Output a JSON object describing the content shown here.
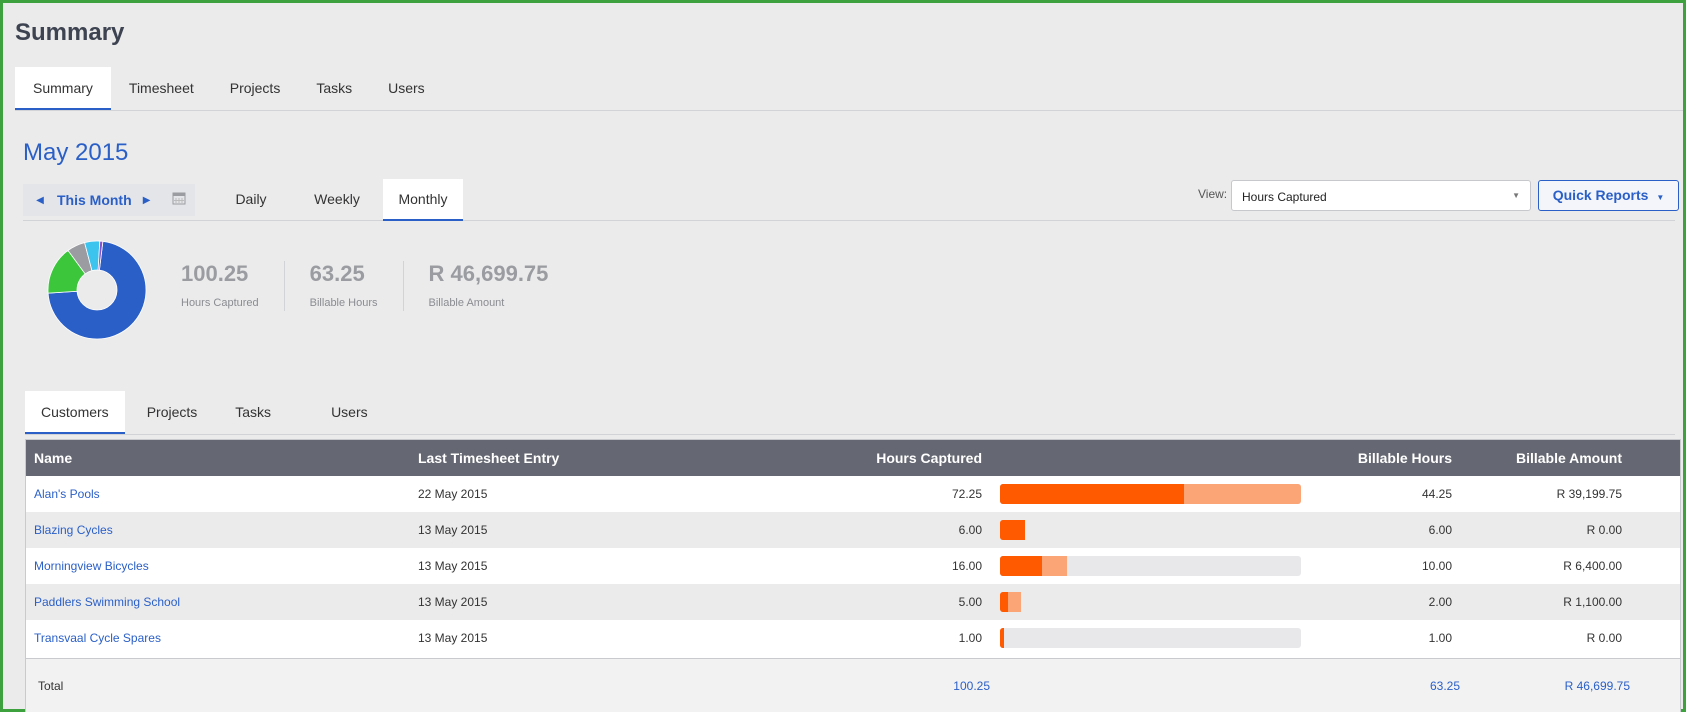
{
  "page": {
    "title": "Summary"
  },
  "top_tabs": [
    {
      "label": "Summary",
      "active": true
    },
    {
      "label": "Timesheet"
    },
    {
      "label": "Projects"
    },
    {
      "label": "Tasks"
    },
    {
      "label": "Users"
    }
  ],
  "period": {
    "title": "May 2015",
    "nav_label": "This Month",
    "tabs": [
      {
        "label": "Daily"
      },
      {
        "label": "Weekly"
      },
      {
        "label": "Monthly",
        "active": true
      }
    ]
  },
  "view": {
    "label": "View:",
    "selected": "Hours Captured"
  },
  "quick_reports": {
    "label": "Quick Reports"
  },
  "stats": [
    {
      "value": "100.25",
      "label": "Hours Captured"
    },
    {
      "value": "63.25",
      "label": "Billable Hours"
    },
    {
      "value": "R 46,699.75",
      "label": "Billable Amount"
    }
  ],
  "donut": {
    "slices": [
      {
        "value": 72.25,
        "color": "#2a5fc7"
      },
      {
        "value": 16.0,
        "color": "#3cc63c"
      },
      {
        "value": 6.0,
        "color": "#9a9ca1"
      },
      {
        "value": 5.0,
        "color": "#3cc3ee"
      },
      {
        "value": 1.0,
        "color": "#8a4fc9"
      }
    ]
  },
  "sub_tabs": [
    {
      "label": "Customers",
      "active": true
    },
    {
      "label": "Projects"
    },
    {
      "label": "Tasks"
    },
    {
      "label": "Users"
    }
  ],
  "table": {
    "headers": {
      "name": "Name",
      "last_entry": "Last Timesheet Entry",
      "hours": "Hours Captured",
      "billable_hours": "Billable Hours",
      "billable_amount": "Billable Amount"
    },
    "max_hours": 72.25,
    "rows": [
      {
        "name": "Alan's Pools",
        "last_entry": "22 May 2015",
        "hours": "72.25",
        "hours_value": 72.25,
        "billable_value": 44.25,
        "billable_hours": "44.25",
        "billable_amount": "R 39,199.75"
      },
      {
        "name": "Blazing Cycles",
        "last_entry": "13 May 2015",
        "hours": "6.00",
        "hours_value": 6.0,
        "billable_value": 6.0,
        "billable_hours": "6.00",
        "billable_amount": "R 0.00"
      },
      {
        "name": "Morningview Bicycles",
        "last_entry": "13 May 2015",
        "hours": "16.00",
        "hours_value": 16.0,
        "billable_value": 10.0,
        "billable_hours": "10.00",
        "billable_amount": "R 6,400.00"
      },
      {
        "name": "Paddlers Swimming School",
        "last_entry": "13 May 2015",
        "hours": "5.00",
        "hours_value": 5.0,
        "billable_value": 2.0,
        "billable_hours": "2.00",
        "billable_amount": "R 1,100.00"
      },
      {
        "name": "Transvaal Cycle Spares",
        "last_entry": "13 May 2015",
        "hours": "1.00",
        "hours_value": 1.0,
        "billable_value": 1.0,
        "billable_hours": "1.00",
        "billable_amount": "R 0.00"
      }
    ],
    "total": {
      "label": "Total",
      "hours": "100.25",
      "billable_hours": "63.25",
      "billable_amount": "R 46,699.75"
    }
  },
  "colors": {
    "accent": "#2a5fc7",
    "bar_billable": "#ff5a00",
    "bar_captured": "#fba577",
    "frame": "#3da13d",
    "header_bg": "#656872"
  },
  "icons": {
    "prev": "caret-left-icon",
    "next": "caret-right-icon",
    "calendar": "calendar-icon",
    "select_caret": "caret-down-icon",
    "quick_caret": "caret-down-icon"
  }
}
